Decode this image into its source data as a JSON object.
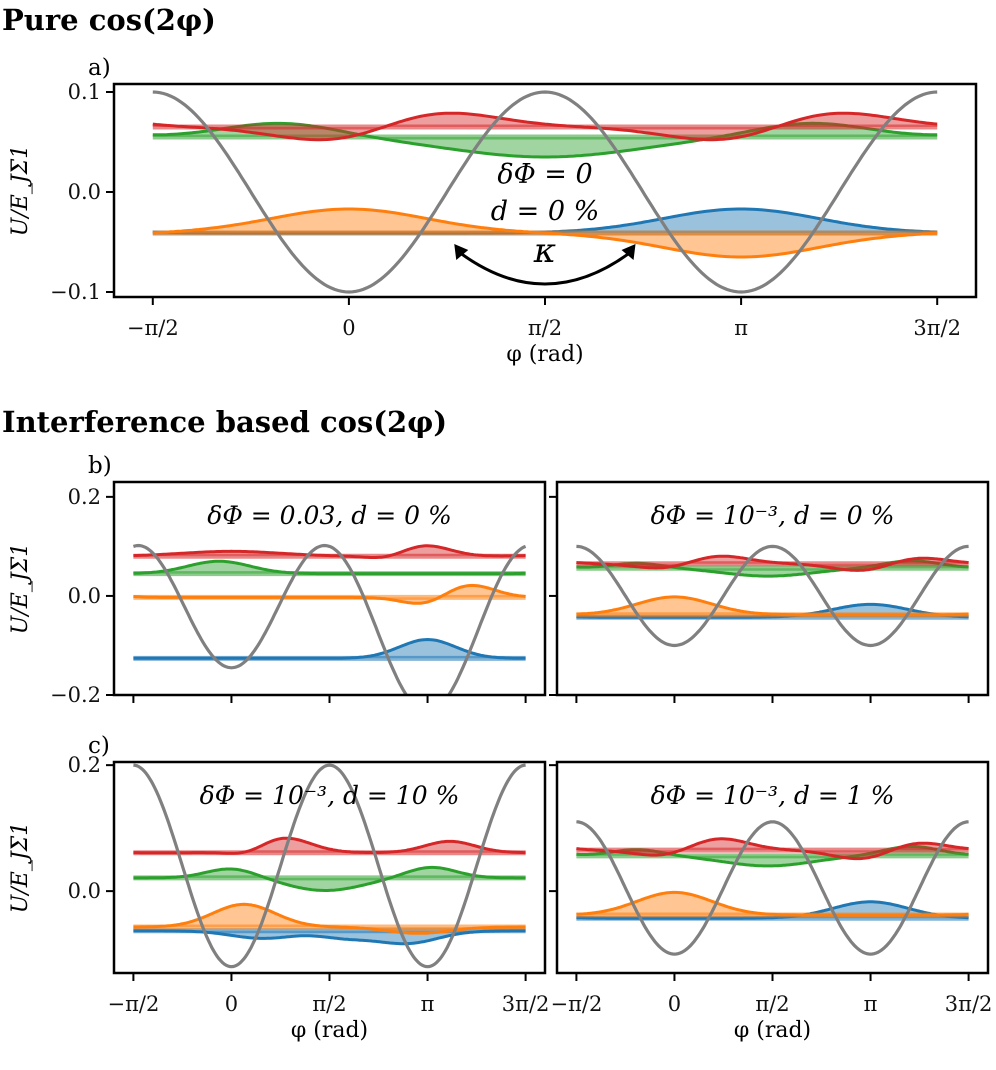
{
  "headings": {
    "pure": "Pure cos(2φ)",
    "interference": "Interference based cos(2φ)"
  },
  "colors": {
    "blue": "#1f77b4",
    "orange": "#ff7f0e",
    "green": "#2ca02c",
    "red": "#d62728",
    "gray": "#808080"
  },
  "chart_data": [
    {
      "id": "a",
      "panel_label": "a)",
      "type": "line",
      "annotation": [
        "δΦ = 0",
        "d = 0 %"
      ],
      "arrow_label": "κ",
      "ylabel": "U/E_JΣ1",
      "xlabel": "φ (rad)",
      "xlim": [
        -1.5708,
        4.7124
      ],
      "ylim": [
        -0.105,
        0.108
      ],
      "yticks": [
        0.1,
        0.0,
        -0.1
      ],
      "ytick_labels": [
        "0.1",
        "0.0",
        "−0.1"
      ],
      "xticks": [
        -1.5708,
        0,
        1.5708,
        3.1416,
        4.7124
      ],
      "xtick_labels": [
        "−π/2",
        "0",
        "π/2",
        "π",
        "3π/2"
      ],
      "potential": {
        "offset": 0,
        "amp": 0.1,
        "extra": 0,
        "shift": 0
      },
      "series": [
        {
          "name": "blue",
          "base": -0.041,
          "wells": [
            {
              "c": 3.1416,
              "a": 0.024,
              "w": 0.62
            }
          ]
        },
        {
          "name": "orange",
          "base": -0.041,
          "wells": [
            {
              "c": 0.0,
              "a": 0.024,
              "w": 0.62
            },
            {
              "c": 3.1416,
              "a": -0.024,
              "w": 0.62
            }
          ]
        },
        {
          "name": "green",
          "base": 0.055,
          "wells": [
            {
              "c": 1.57,
              "a": -0.02,
              "w": 0.75
            },
            {
              "c": -0.55,
              "a": 0.014,
              "w": 0.45
            },
            {
              "c": 3.7,
              "a": 0.014,
              "w": 0.45
            }
          ]
        },
        {
          "name": "red",
          "base": 0.065,
          "wells": [
            {
              "c": 0.6,
              "a": 0.021,
              "w": 0.5
            },
            {
              "c": 3.74,
              "a": 0.021,
              "w": 0.5
            },
            {
              "c": 0.0,
              "a": -0.02,
              "w": 0.5
            },
            {
              "c": 3.1416,
              "a": -0.02,
              "w": 0.5
            }
          ]
        }
      ]
    },
    {
      "id": "b1",
      "panel_label": "b)",
      "type": "line",
      "annotation": [
        "δΦ = 0.03, d = 0 %"
      ],
      "ylabel": "U/E_JΣ1",
      "xlim": [
        -1.5708,
        4.7124
      ],
      "ylim": [
        -0.2,
        0.23
      ],
      "yticks": [
        0.2,
        0.0,
        -0.2
      ],
      "ytick_labels": [
        "0.2",
        "0.0",
        "−0.2"
      ],
      "potential": {
        "offset": -0.045,
        "amp": 0.145,
        "extra": 0.045,
        "shift": 0
      },
      "series": [
        {
          "name": "blue",
          "base": -0.126,
          "wells": [
            {
              "c": 3.1416,
              "a": 0.038,
              "w": 0.45
            }
          ]
        },
        {
          "name": "orange",
          "base": -0.003,
          "wells": [
            {
              "c": 3.8,
              "a": 0.026,
              "w": 0.4
            },
            {
              "c": 3.1,
              "a": -0.016,
              "w": 0.35
            }
          ]
        },
        {
          "name": "green",
          "base": 0.045,
          "wells": [
            {
              "c": -0.2,
              "a": 0.025,
              "w": 0.5
            }
          ]
        },
        {
          "name": "red",
          "base": 0.08,
          "wells": [
            {
              "c": 0.0,
              "a": 0.01,
              "w": 0.8
            },
            {
              "c": 3.1,
              "a": 0.022,
              "w": 0.4
            },
            {
              "c": 2.5,
              "a": -0.007,
              "w": 0.3
            }
          ]
        }
      ]
    },
    {
      "id": "b2",
      "panel_label": "",
      "type": "line",
      "annotation": [
        "δΦ = 10⁻³, d = 0 %"
      ],
      "xlim": [
        -1.5708,
        4.7124
      ],
      "ylim": [
        -0.2,
        0.23
      ],
      "potential": {
        "offset": 0,
        "amp": 0.1,
        "extra": 0,
        "shift": 0
      },
      "series": [
        {
          "name": "blue",
          "base": -0.043,
          "wells": [
            {
              "c": 3.1416,
              "a": 0.026,
              "w": 0.6
            }
          ]
        },
        {
          "name": "orange",
          "base": -0.038,
          "wells": [
            {
              "c": 0.0,
              "a": 0.036,
              "w": 0.6
            }
          ]
        },
        {
          "name": "green",
          "base": 0.056,
          "wells": [
            {
              "c": 1.5,
              "a": -0.016,
              "w": 0.7
            },
            {
              "c": -0.6,
              "a": 0.01,
              "w": 0.4
            },
            {
              "c": 3.8,
              "a": 0.015,
              "w": 0.45
            }
          ]
        },
        {
          "name": "red",
          "base": 0.065,
          "wells": [
            {
              "c": 0.6,
              "a": 0.021,
              "w": 0.5
            },
            {
              "c": 3.74,
              "a": 0.018,
              "w": 0.5
            },
            {
              "c": 0.0,
              "a": -0.015,
              "w": 0.5
            },
            {
              "c": 3.1416,
              "a": -0.02,
              "w": 0.5
            }
          ]
        }
      ]
    },
    {
      "id": "c1",
      "panel_label": "c)",
      "type": "line",
      "annotation": [
        "δΦ = 10⁻³, d = 10 %"
      ],
      "ylabel": "U/E_JΣ1",
      "xlabel": "φ (rad)",
      "xlim": [
        -1.5708,
        4.7124
      ],
      "ylim": [
        -0.13,
        0.205
      ],
      "yticks": [
        0.2,
        0.0
      ],
      "ytick_labels": [
        "0.2",
        "0.0"
      ],
      "xticks": [
        -1.5708,
        0,
        1.5708,
        3.1416,
        4.7124
      ],
      "xtick_labels": [
        "−π/2",
        "0",
        "π/2",
        "π",
        "3π/2"
      ],
      "potential": {
        "offset": 0.04,
        "amp": 0.16,
        "extra": 0,
        "shift": 0
      },
      "series": [
        {
          "name": "blue",
          "base": -0.063,
          "wells": [
            {
              "c": 0.5,
              "a": -0.012,
              "w": 0.5
            },
            {
              "c": 2.8,
              "a": -0.02,
              "w": 0.5
            },
            {
              "c": 1.8,
              "a": -0.01,
              "w": 0.4
            }
          ]
        },
        {
          "name": "orange",
          "base": -0.057,
          "wells": [
            {
              "c": 0.2,
              "a": 0.036,
              "w": 0.5
            },
            {
              "c": 3.0,
              "a": -0.01,
              "w": 0.5
            }
          ]
        },
        {
          "name": "green",
          "base": 0.021,
          "wells": [
            {
              "c": 1.5,
              "a": -0.02,
              "w": 0.6
            },
            {
              "c": 0.0,
              "a": 0.015,
              "w": 0.4
            },
            {
              "c": 3.2,
              "a": 0.017,
              "w": 0.4
            }
          ]
        },
        {
          "name": "red",
          "base": 0.061,
          "wells": [
            {
              "c": 0.8,
              "a": 0.025,
              "w": 0.45
            },
            {
              "c": 3.5,
              "a": 0.018,
              "w": 0.4
            },
            {
              "c": 0.3,
              "a": -0.01,
              "w": 0.3
            }
          ]
        }
      ]
    },
    {
      "id": "c2",
      "panel_label": "",
      "type": "line",
      "annotation": [
        "δΦ = 10⁻³, d = 1 %"
      ],
      "xlabel": "φ (rad)",
      "xlim": [
        -1.5708,
        4.7124
      ],
      "ylim": [
        -0.13,
        0.205
      ],
      "xticks": [
        -1.5708,
        0,
        1.5708,
        3.1416,
        4.7124
      ],
      "xtick_labels": [
        "−π/2",
        "0",
        "π/2",
        "π",
        "3π/2"
      ],
      "potential": {
        "offset": 0.005,
        "amp": 0.105,
        "extra": 0,
        "shift": 0
      },
      "series": [
        {
          "name": "blue",
          "base": -0.043,
          "wells": [
            {
              "c": 3.1416,
              "a": 0.026,
              "w": 0.6
            }
          ]
        },
        {
          "name": "orange",
          "base": -0.038,
          "wells": [
            {
              "c": 0.0,
              "a": 0.036,
              "w": 0.6
            }
          ]
        },
        {
          "name": "green",
          "base": 0.056,
          "wells": [
            {
              "c": 1.5,
              "a": -0.016,
              "w": 0.7
            },
            {
              "c": -0.6,
              "a": 0.01,
              "w": 0.4
            },
            {
              "c": 3.8,
              "a": 0.015,
              "w": 0.45
            }
          ]
        },
        {
          "name": "red",
          "base": 0.065,
          "wells": [
            {
              "c": 0.6,
              "a": 0.024,
              "w": 0.5
            },
            {
              "c": 3.74,
              "a": 0.018,
              "w": 0.5
            },
            {
              "c": 0.0,
              "a": -0.015,
              "w": 0.5
            },
            {
              "c": 3.1416,
              "a": -0.02,
              "w": 0.5
            }
          ]
        }
      ]
    }
  ]
}
